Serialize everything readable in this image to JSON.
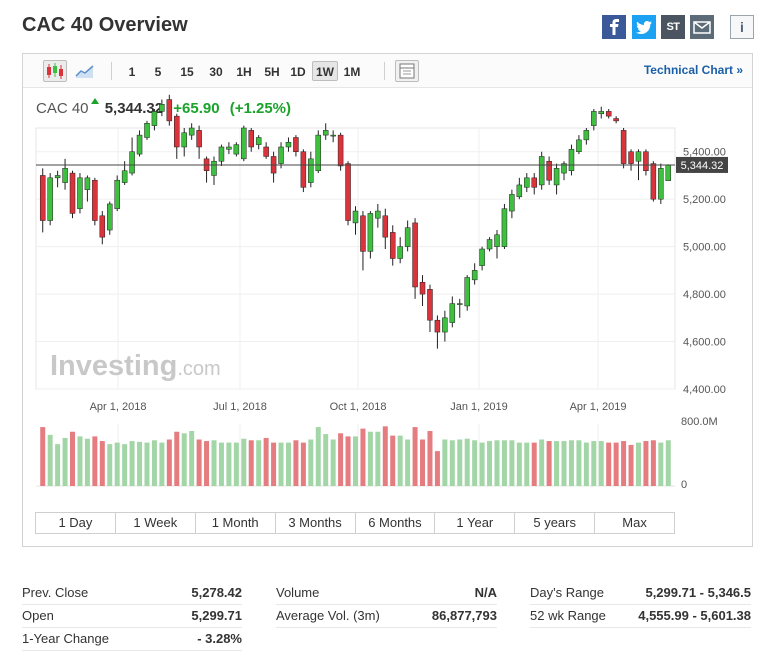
{
  "page": {
    "title": "CAC 40 Overview"
  },
  "share": {
    "icons": [
      "facebook-icon",
      "twitter-icon",
      "stocktwits-icon",
      "email-icon",
      "info-icon"
    ],
    "stocktwits_label": "ST",
    "info_label": "i"
  },
  "toolbar": {
    "timeframes": [
      "1",
      "5",
      "15",
      "30",
      "1H",
      "5H",
      "1D",
      "1W",
      "1M"
    ],
    "active_timeframe": "1W",
    "technical_chart_label": "Technical Chart »"
  },
  "quote": {
    "name": "CAC 40",
    "last": "5,344.32",
    "change": "+65.90",
    "change_pct": "(+1.25%)"
  },
  "colors": {
    "up": "#3fbf3f",
    "down": "#d9333c",
    "vol_up": "#a3d6a7",
    "vol_down": "#e47c80",
    "accent": "#1a5fa8"
  },
  "chart_data": {
    "type": "candlestick",
    "y_ticks": [
      "5,400.00",
      "5,200.00",
      "5,000.00",
      "4,800.00",
      "4,600.00",
      "4,400.00"
    ],
    "y_range": [
      4400,
      5500
    ],
    "x_ticks": [
      "Apr 1, 2018",
      "Jul 1, 2018",
      "Oct 1, 2018",
      "Jan 1, 2019",
      "Apr 1, 2019"
    ],
    "last_price_label": "5,344.32",
    "last_price": 5344.32,
    "volume_ticks": [
      "800.0M",
      "0"
    ],
    "watermark": {
      "brand": "Investing",
      "suffix": ".com"
    },
    "candles": [
      [
        5300,
        5110,
        5330,
        5060
      ],
      [
        5110,
        5290,
        5310,
        5090
      ],
      [
        5290,
        5300,
        5320,
        5250
      ],
      [
        5270,
        5330,
        5370,
        5240
      ],
      [
        5310,
        5140,
        5320,
        5120
      ],
      [
        5160,
        5290,
        5310,
        5140
      ],
      [
        5240,
        5290,
        5300,
        5190
      ],
      [
        5280,
        5110,
        5290,
        5090
      ],
      [
        5130,
        5040,
        5150,
        5010
      ],
      [
        5070,
        5180,
        5190,
        5050
      ],
      [
        5160,
        5280,
        5300,
        5150
      ],
      [
        5270,
        5320,
        5360,
        5260
      ],
      [
        5310,
        5400,
        5460,
        5300
      ],
      [
        5390,
        5470,
        5490,
        5380
      ],
      [
        5460,
        5520,
        5530,
        5450
      ],
      [
        5510,
        5570,
        5580,
        5490
      ],
      [
        5570,
        5600,
        5620,
        5550
      ],
      [
        5620,
        5530,
        5640,
        5510
      ],
      [
        5550,
        5420,
        5560,
        5370
      ],
      [
        5420,
        5480,
        5500,
        5380
      ],
      [
        5470,
        5500,
        5520,
        5450
      ],
      [
        5490,
        5420,
        5510,
        5370
      ],
      [
        5370,
        5320,
        5380,
        5270
      ],
      [
        5300,
        5360,
        5380,
        5260
      ],
      [
        5360,
        5420,
        5430,
        5340
      ],
      [
        5410,
        5420,
        5440,
        5390
      ],
      [
        5390,
        5430,
        5440,
        5380
      ],
      [
        5370,
        5500,
        5510,
        5360
      ],
      [
        5490,
        5420,
        5500,
        5400
      ],
      [
        5430,
        5460,
        5470,
        5410
      ],
      [
        5420,
        5380,
        5440,
        5370
      ],
      [
        5380,
        5310,
        5400,
        5270
      ],
      [
        5350,
        5420,
        5440,
        5330
      ],
      [
        5420,
        5440,
        5460,
        5400
      ],
      [
        5460,
        5400,
        5470,
        5380
      ],
      [
        5400,
        5250,
        5410,
        5230
      ],
      [
        5270,
        5370,
        5400,
        5250
      ],
      [
        5320,
        5470,
        5490,
        5310
      ],
      [
        5470,
        5490,
        5520,
        5450
      ],
      [
        5470,
        5470,
        5490,
        5440
      ],
      [
        5470,
        5340,
        5480,
        5320
      ],
      [
        5350,
        5110,
        5360,
        5090
      ],
      [
        5100,
        5150,
        5170,
        5050
      ],
      [
        5130,
        4980,
        5150,
        4900
      ],
      [
        4980,
        5140,
        5150,
        4950
      ],
      [
        5120,
        5150,
        5180,
        5080
      ],
      [
        5130,
        5040,
        5160,
        4990
      ],
      [
        5060,
        4950,
        5090,
        4920
      ],
      [
        4950,
        5000,
        5040,
        4930
      ],
      [
        5000,
        5080,
        5110,
        4980
      ],
      [
        5100,
        4830,
        5120,
        4780
      ],
      [
        4850,
        4800,
        4880,
        4750
      ],
      [
        4820,
        4690,
        4840,
        4640
      ],
      [
        4690,
        4640,
        4710,
        4570
      ],
      [
        4640,
        4700,
        4730,
        4600
      ],
      [
        4680,
        4760,
        4790,
        4660
      ],
      [
        4760,
        4760,
        4780,
        4700
      ],
      [
        4750,
        4870,
        4880,
        4730
      ],
      [
        4860,
        4900,
        4930,
        4840
      ],
      [
        4920,
        4990,
        5000,
        4900
      ],
      [
        4990,
        5030,
        5040,
        4980
      ],
      [
        5000,
        5050,
        5070,
        4950
      ],
      [
        5000,
        5160,
        5180,
        4990
      ],
      [
        5150,
        5220,
        5240,
        5120
      ],
      [
        5210,
        5260,
        5290,
        5200
      ],
      [
        5250,
        5290,
        5310,
        5230
      ],
      [
        5290,
        5250,
        5310,
        5220
      ],
      [
        5260,
        5380,
        5400,
        5240
      ],
      [
        5360,
        5280,
        5380,
        5260
      ],
      [
        5260,
        5330,
        5350,
        5220
      ],
      [
        5310,
        5350,
        5360,
        5280
      ],
      [
        5320,
        5410,
        5430,
        5300
      ],
      [
        5400,
        5450,
        5470,
        5390
      ],
      [
        5450,
        5490,
        5500,
        5430
      ],
      [
        5510,
        5570,
        5580,
        5490
      ],
      [
        5560,
        5570,
        5590,
        5540
      ],
      [
        5570,
        5550,
        5580,
        5540
      ],
      [
        5540,
        5530,
        5550,
        5520
      ],
      [
        5490,
        5350,
        5500,
        5330
      ],
      [
        5400,
        5350,
        5410,
        5320
      ],
      [
        5360,
        5400,
        5410,
        5280
      ],
      [
        5400,
        5320,
        5410,
        5300
      ],
      [
        5350,
        5200,
        5360,
        5190
      ],
      [
        5200,
        5330,
        5350,
        5180
      ],
      [
        5278,
        5344,
        5347,
        5300
      ]
    ],
    "volume_scale_max": 800,
    "volumes": [
      760,
      660,
      540,
      620,
      700,
      640,
      610,
      640,
      580,
      540,
      560,
      540,
      580,
      570,
      560,
      590,
      560,
      600,
      700,
      680,
      710,
      600,
      580,
      590,
      560,
      560,
      560,
      610,
      590,
      590,
      620,
      560,
      560,
      560,
      590,
      560,
      600,
      760,
      670,
      600,
      680,
      640,
      640,
      740,
      700,
      700,
      770,
      650,
      650,
      600,
      760,
      600,
      710,
      450,
      600,
      590,
      600,
      610,
      590,
      560,
      580,
      590,
      590,
      590,
      560,
      560,
      560,
      600,
      580,
      580,
      580,
      590,
      590,
      560,
      580,
      580,
      560,
      560,
      580,
      530,
      560,
      580,
      590,
      560,
      590
    ]
  },
  "range_buttons": [
    "1 Day",
    "1 Week",
    "1 Month",
    "3 Months",
    "6 Months",
    "1 Year",
    "5 years",
    "Max"
  ],
  "stats": {
    "col1": [
      {
        "label": "Prev. Close",
        "value": "5,278.42"
      },
      {
        "label": "Open",
        "value": "5,299.71"
      },
      {
        "label": "1-Year Change",
        "value": "- 3.28%"
      }
    ],
    "col2": [
      {
        "label": "Volume",
        "value": "N/A"
      },
      {
        "label": "Average Vol. (3m)",
        "value": "86,877,793"
      }
    ],
    "col3": [
      {
        "label": "Day's Range",
        "value": "5,299.71 - 5,346.5"
      },
      {
        "label": "52 wk Range",
        "value": "4,555.99 - 5,601.38"
      }
    ]
  }
}
